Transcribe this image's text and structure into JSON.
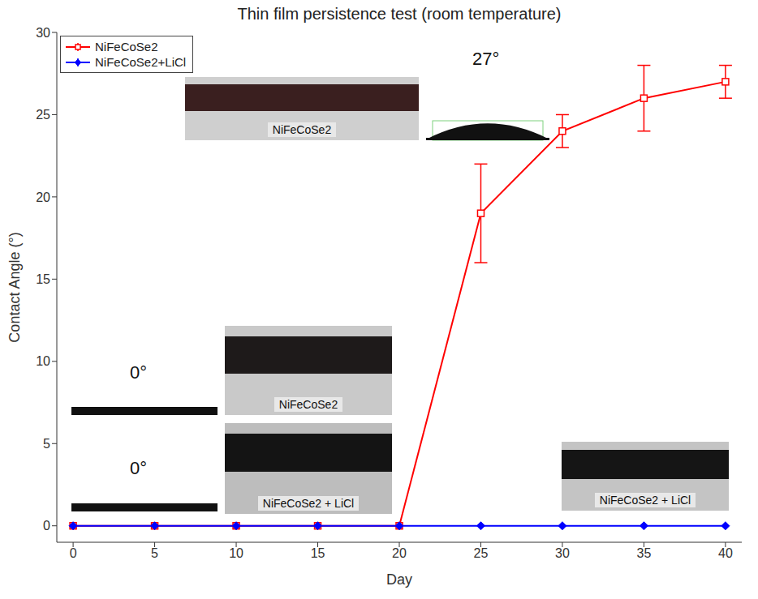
{
  "chart_data": {
    "type": "line",
    "title": "Thin film persistence test (room temperature)",
    "x_label": "Day",
    "y_label": "Contact Angle (°)",
    "x": [
      0,
      5,
      10,
      15,
      20,
      25,
      30,
      35,
      40
    ],
    "series": [
      {
        "name": "NiFeCoSe2",
        "color": "#ff0000",
        "marker": "square",
        "values": [
          0,
          0,
          0,
          0,
          0,
          19,
          24,
          26,
          27
        ],
        "errors": [
          0,
          0,
          0,
          0,
          0,
          3,
          1,
          2,
          1
        ]
      },
      {
        "name": "NiFeCoSe2+LiCl",
        "color": "#0000ff",
        "marker": "diamond",
        "values": [
          0,
          0,
          0,
          0,
          0,
          0,
          0,
          0,
          0
        ],
        "errors": [
          0,
          0,
          0,
          0,
          0,
          0,
          0,
          0,
          0
        ]
      }
    ],
    "xlim": [
      -1,
      41
    ],
    "ylim": [
      -1,
      30
    ],
    "xticks": [
      0,
      5,
      10,
      15,
      20,
      25,
      30,
      35,
      40
    ],
    "yticks": [
      0,
      5,
      10,
      15,
      20,
      25,
      30
    ],
    "grid": false,
    "legend": "upper left",
    "annotations": [
      "NiFeCoSe2",
      "27°",
      "0°",
      "0°",
      "NiFeCoSe2",
      "NiFeCoSe2 + LiCl",
      "NiFeCoSe2 + LiCl"
    ]
  }
}
